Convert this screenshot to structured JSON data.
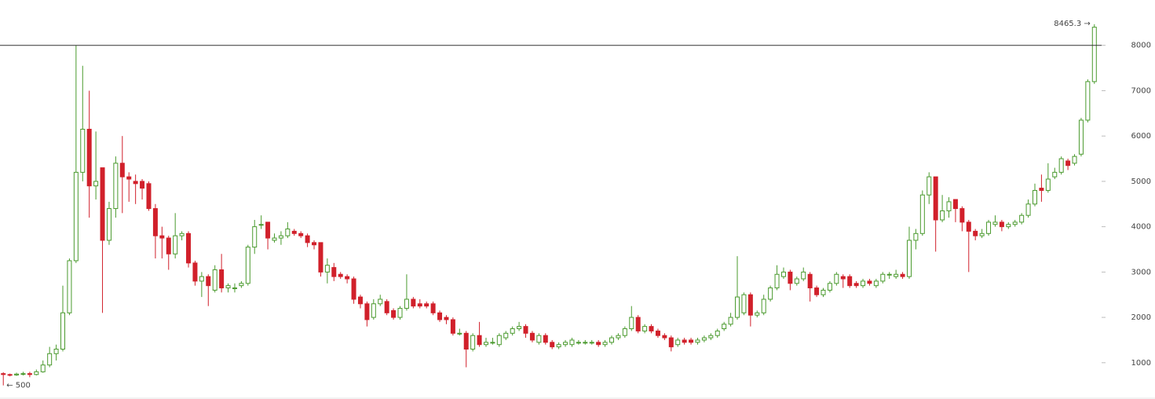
{
  "chart_data": {
    "type": "candlestick",
    "open": [
      760,
      740,
      730,
      750,
      760,
      740,
      800,
      950,
      1200,
      1300,
      2100,
      3250,
      5200,
      6150,
      4900,
      5300,
      3700,
      4400,
      5400,
      5100,
      5000,
      5000,
      4950,
      4400,
      3800,
      3750,
      3400,
      3800,
      3850,
      3200,
      2800,
      2900,
      2600,
      3050,
      2650,
      2650,
      2700,
      2750,
      3550,
      4050,
      4100,
      3700,
      3750,
      3800,
      3900,
      3850,
      3800,
      3650,
      3650,
      3000,
      3100,
      2950,
      2900,
      2850,
      2450,
      2300,
      2000,
      2300,
      2350,
      2150,
      2000,
      2200,
      2400,
      2300,
      2300,
      2300,
      2100,
      2000,
      1950,
      1650,
      1650,
      1300,
      1600,
      1400,
      1450,
      1400,
      1550,
      1650,
      1750,
      1800,
      1650,
      1450,
      1600,
      1450,
      1350,
      1400,
      1400,
      1450,
      1450,
      1450,
      1450,
      1400,
      1450,
      1550,
      1600,
      1750,
      2000,
      1700,
      1800,
      1700,
      1600,
      1550,
      1400,
      1500,
      1500,
      1450,
      1500,
      1550,
      1600,
      1750,
      1850,
      2000,
      2100,
      2500,
      2050,
      2100,
      2400,
      2650,
      2900,
      3000,
      2750,
      2850,
      2950,
      2650,
      2500,
      2600,
      2750,
      2900,
      2900,
      2750,
      2700,
      2800,
      2700,
      2800,
      2950,
      2900,
      2950,
      2900,
      3700,
      3850,
      4700,
      5100,
      4150,
      4350,
      4600,
      4400,
      4100,
      3900,
      3800,
      3850,
      4050,
      4100,
      4000,
      4050,
      4100,
      4250,
      4500,
      4850,
      4800,
      5100,
      5200,
      5450,
      5400,
      5600,
      6350,
      7200
    ],
    "high": [
      790,
      760,
      780,
      800,
      800,
      850,
      1050,
      1350,
      1400,
      2700,
      3300,
      8000,
      7550,
      7000,
      6100,
      5300,
      4550,
      5550,
      6000,
      5200,
      5150,
      5050,
      5000,
      4500,
      4000,
      3800,
      4300,
      3900,
      3900,
      3250,
      3000,
      2950,
      3150,
      3400,
      2750,
      2750,
      2800,
      3600,
      4150,
      4250,
      4100,
      3850,
      3900,
      4100,
      3950,
      3900,
      3850,
      3700,
      3650,
      3300,
      3200,
      3000,
      2950,
      2900,
      2500,
      2350,
      2400,
      2500,
      2400,
      2200,
      2250,
      2950,
      2450,
      2400,
      2350,
      2350,
      2150,
      2050,
      2000,
      1750,
      1700,
      1650,
      1900,
      1550,
      1550,
      1650,
      1700,
      1800,
      1900,
      1850,
      1700,
      1650,
      1650,
      1500,
      1450,
      1500,
      1550,
      1500,
      1500,
      1500,
      1500,
      1500,
      1600,
      1650,
      1800,
      2250,
      2050,
      1850,
      1850,
      1750,
      1650,
      1600,
      1550,
      1550,
      1550,
      1550,
      1600,
      1650,
      1750,
      1900,
      2100,
      3350,
      2550,
      2550,
      2150,
      2500,
      2700,
      3150,
      3100,
      3050,
      2900,
      3100,
      3000,
      2700,
      2650,
      2800,
      3000,
      2950,
      2950,
      2800,
      2850,
      2850,
      2850,
      3000,
      3000,
      3050,
      3000,
      4000,
      3950,
      4800,
      5200,
      5100,
      4700,
      4650,
      4600,
      4450,
      4150,
      3950,
      3950,
      4150,
      4250,
      4150,
      4100,
      4150,
      4300,
      4600,
      4950,
      5150,
      5400,
      5300,
      5550,
      5500,
      5600,
      6400,
      7250,
      8465.3
    ],
    "low": [
      500,
      700,
      710,
      720,
      680,
      720,
      780,
      900,
      1050,
      1250,
      2050,
      3200,
      5000,
      4200,
      4600,
      2100,
      3600,
      4200,
      4300,
      4550,
      4500,
      4600,
      4350,
      3300,
      3300,
      3050,
      3300,
      3700,
      3100,
      2700,
      2450,
      2250,
      2550,
      2550,
      2550,
      2550,
      2650,
      2700,
      3400,
      3950,
      3500,
      3650,
      3600,
      3750,
      3800,
      3750,
      3550,
      3500,
      2900,
      2750,
      2800,
      2850,
      2750,
      2300,
      2200,
      1800,
      1950,
      2250,
      2050,
      1950,
      1950,
      2150,
      2200,
      2200,
      2200,
      2050,
      1900,
      1850,
      1600,
      1600,
      900,
      1250,
      1350,
      1350,
      1400,
      1350,
      1500,
      1600,
      1700,
      1550,
      1450,
      1400,
      1400,
      1300,
      1300,
      1350,
      1350,
      1400,
      1400,
      1400,
      1350,
      1350,
      1400,
      1500,
      1550,
      1700,
      1650,
      1650,
      1650,
      1550,
      1500,
      1250,
      1350,
      1400,
      1400,
      1400,
      1450,
      1500,
      1550,
      1700,
      1800,
      1950,
      2050,
      1800,
      2000,
      2050,
      2350,
      2600,
      2850,
      2600,
      2700,
      2800,
      2350,
      2450,
      2450,
      2550,
      2700,
      2650,
      2650,
      2650,
      2650,
      2700,
      2650,
      2750,
      2850,
      2850,
      2850,
      2850,
      3500,
      3800,
      4500,
      3450,
      4100,
      4200,
      4100,
      3900,
      3000,
      3700,
      3750,
      3800,
      4000,
      3900,
      3950,
      4000,
      4050,
      4200,
      4450,
      4550,
      4750,
      5050,
      5150,
      5250,
      5350,
      5550,
      6300,
      7150
    ],
    "close": [
      740,
      730,
      750,
      760,
      740,
      800,
      950,
      1200,
      1300,
      2100,
      3250,
      5200,
      6150,
      4900,
      5000,
      3700,
      4400,
      5400,
      5100,
      5050,
      4950,
      4850,
      4400,
      3800,
      3750,
      3400,
      3800,
      3850,
      3200,
      2800,
      2900,
      2700,
      3050,
      2650,
      2700,
      2650,
      2750,
      3550,
      4000,
      4050,
      3750,
      3750,
      3800,
      3950,
      3850,
      3800,
      3650,
      3600,
      3000,
      3150,
      2900,
      2900,
      2850,
      2400,
      2300,
      1950,
      2300,
      2400,
      2100,
      2000,
      2200,
      2400,
      2250,
      2250,
      2250,
      2100,
      1950,
      1950,
      1650,
      1650,
      1300,
      1600,
      1400,
      1450,
      1450,
      1600,
      1650,
      1750,
      1800,
      1650,
      1500,
      1600,
      1450,
      1350,
      1400,
      1450,
      1500,
      1450,
      1450,
      1450,
      1400,
      1450,
      1550,
      1600,
      1750,
      2000,
      1700,
      1800,
      1700,
      1600,
      1550,
      1350,
      1500,
      1450,
      1450,
      1500,
      1550,
      1600,
      1700,
      1850,
      2000,
      2450,
      2500,
      2050,
      2100,
      2400,
      2650,
      2950,
      3000,
      2750,
      2850,
      3000,
      2650,
      2500,
      2600,
      2750,
      2950,
      2850,
      2700,
      2700,
      2800,
      2750,
      2800,
      2950,
      2950,
      2950,
      2900,
      3700,
      3850,
      4700,
      5100,
      4150,
      4350,
      4550,
      4400,
      4100,
      3900,
      3800,
      3850,
      4100,
      4100,
      4000,
      4050,
      4100,
      4250,
      4500,
      4800,
      4800,
      5050,
      5200,
      5500,
      5350,
      5550,
      6350,
      7200,
      8400
    ],
    "up_color": "#4a9a2e",
    "down_color": "#d1202b",
    "ylim": [
      200,
      9000
    ],
    "yticks": [
      1000,
      2000,
      3000,
      4000,
      5000,
      6000,
      7000,
      8000
    ],
    "reference_line": 8000,
    "annotations": [
      "8465.3 →",
      "← 500"
    ]
  }
}
